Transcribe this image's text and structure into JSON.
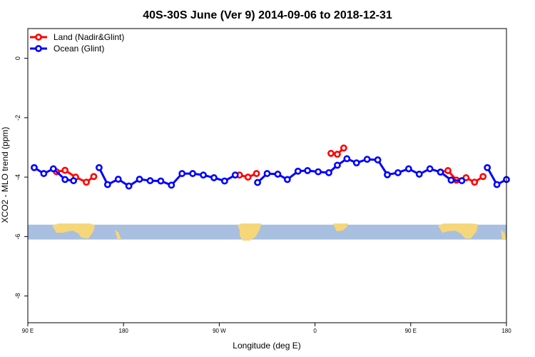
{
  "chart_data": {
    "type": "line",
    "title": "40S-30S June (Ver 9)   2014-09-06 to 2018-12-31",
    "xlabel": "Longitude (deg E)",
    "ylabel": "XCO2 - MLO trend (ppm)",
    "xlim": [
      90,
      540
    ],
    "ylim": [
      -8.9,
      1.0
    ],
    "x_ticks": [
      {
        "value": 90,
        "label": "90 E"
      },
      {
        "value": 180,
        "label": "180"
      },
      {
        "value": 270,
        "label": "90 W"
      },
      {
        "value": 360,
        "label": "0"
      },
      {
        "value": 450,
        "label": "90 E"
      },
      {
        "value": 540,
        "label": "180"
      }
    ],
    "y_ticks": [
      {
        "value": 0,
        "label": "0"
      },
      {
        "value": -2,
        "label": "-2"
      },
      {
        "value": -4,
        "label": "-4"
      },
      {
        "value": -6,
        "label": "-6"
      },
      {
        "value": -8,
        "label": "-8"
      }
    ],
    "legend_position": "top-left",
    "map_band": {
      "ymin": -6.1,
      "ymax": -5.6,
      "ocean_color": "#a8bfe0",
      "land_color": "#f5d77a"
    },
    "series": [
      {
        "name": "Land (Nadir&Glint)",
        "color": "#ff0000",
        "segments": [
          [
            [
              117,
              -3.82
            ],
            [
              125,
              -3.77
            ],
            [
              135,
              -4.0
            ],
            [
              145,
              -4.17
            ],
            [
              152,
              -3.98
            ]
          ],
          [
            [
              289,
              -3.93
            ],
            [
              297,
              -4.0
            ],
            [
              305,
              -3.88
            ]
          ],
          [
            [
              375,
              -3.2
            ],
            [
              381,
              -3.23
            ],
            [
              387,
              -3.02
            ]
          ],
          [
            [
              478,
              -3.83
            ],
            [
              485,
              -3.78
            ],
            [
              493,
              -4.1
            ],
            [
              502,
              -4.02
            ],
            [
              510,
              -4.17
            ],
            [
              518,
              -3.98
            ]
          ]
        ]
      },
      {
        "name": "Ocean (Glint)",
        "color": "#0000ff",
        "segments": [
          [
            [
              96,
              -3.68
            ],
            [
              105,
              -3.88
            ],
            [
              114,
              -3.72
            ],
            [
              125,
              -4.08
            ],
            [
              133,
              -4.12
            ]
          ],
          [
            [
              157,
              -3.68
            ],
            [
              165,
              -4.25
            ],
            [
              175,
              -4.07
            ],
            [
              185,
              -4.3
            ],
            [
              195,
              -4.07
            ],
            [
              205,
              -4.12
            ],
            [
              215,
              -4.13
            ],
            [
              225,
              -4.27
            ],
            [
              235,
              -3.88
            ],
            [
              245,
              -3.88
            ],
            [
              255,
              -3.93
            ],
            [
              265,
              -4.02
            ],
            [
              275,
              -4.13
            ],
            [
              285,
              -3.93
            ]
          ],
          [
            [
              306,
              -4.18
            ],
            [
              315,
              -3.88
            ],
            [
              325,
              -3.9
            ],
            [
              334,
              -4.08
            ],
            [
              344,
              -3.8
            ],
            [
              353,
              -3.78
            ],
            [
              363,
              -3.82
            ],
            [
              373,
              -3.85
            ],
            [
              381,
              -3.6
            ],
            [
              390,
              -3.38
            ],
            [
              399,
              -3.52
            ],
            [
              409,
              -3.4
            ],
            [
              419,
              -3.42
            ],
            [
              428,
              -3.92
            ],
            [
              438,
              -3.85
            ],
            [
              448,
              -3.72
            ],
            [
              458,
              -3.9
            ],
            [
              468,
              -3.72
            ],
            [
              478,
              -3.83
            ],
            [
              488,
              -4.1
            ],
            [
              498,
              -4.12
            ]
          ],
          [
            [
              522,
              -3.68
            ],
            [
              531,
              -4.25
            ],
            [
              540,
              -4.08
            ]
          ]
        ]
      }
    ]
  }
}
